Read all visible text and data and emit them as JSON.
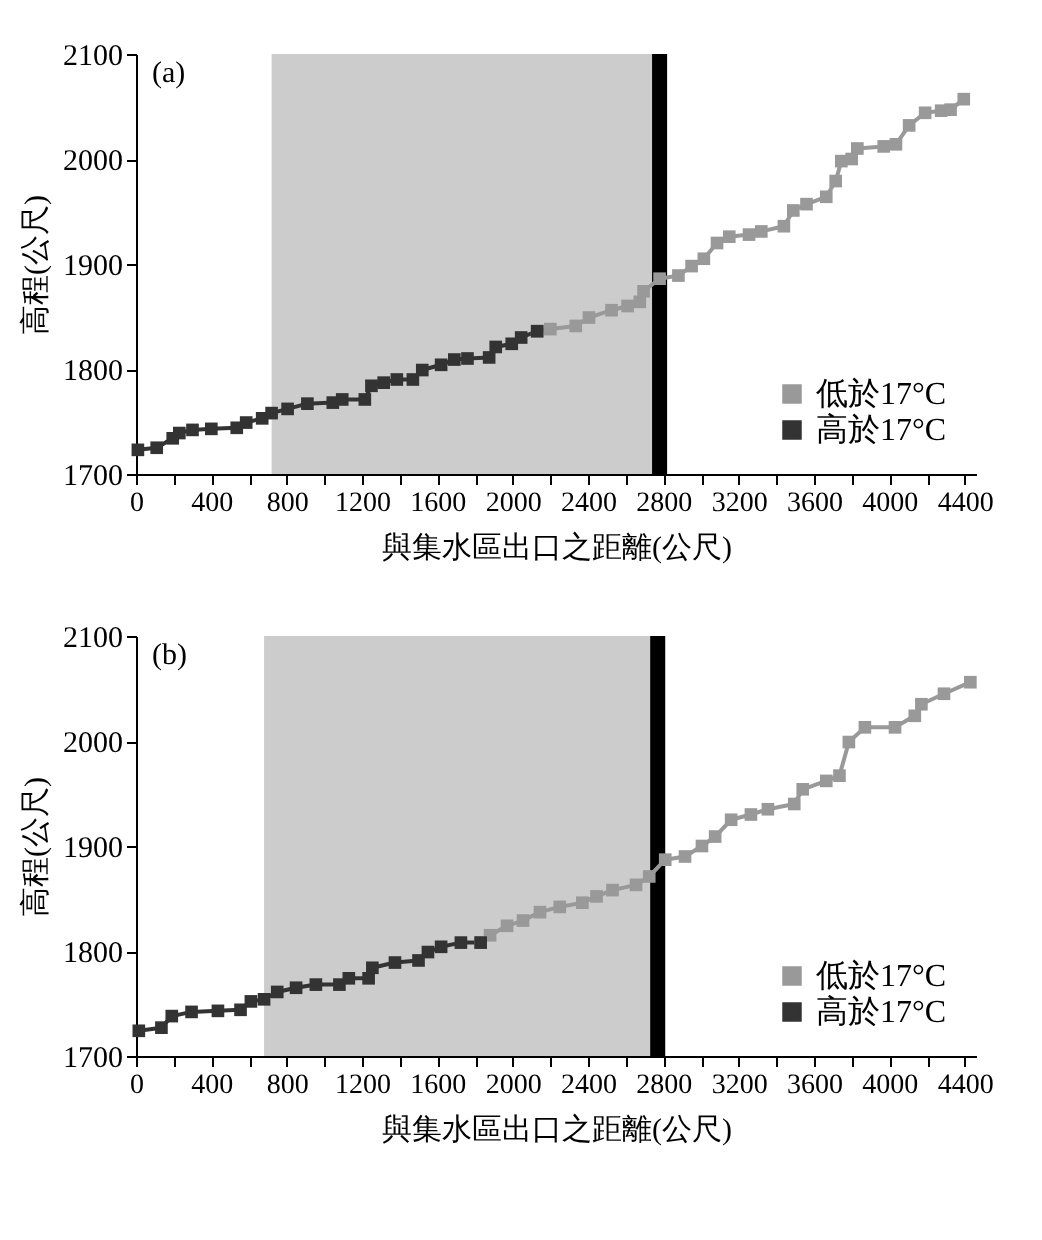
{
  "chart_data": [
    {
      "type": "line",
      "annotations": [
        "(a)"
      ],
      "xlabel": "與集水區出口之距離(公尺)",
      "ylabel": "高程(公尺)",
      "xlim": [
        0,
        4460
      ],
      "ylim": [
        1700,
        2100
      ],
      "xticks": [
        0,
        {
          "value": 200,
          "label": null
        },
        400,
        {
          "value": 600,
          "label": null
        },
        800,
        {
          "value": 1000,
          "label": null
        },
        1200,
        {
          "value": 1400,
          "label": null
        },
        1600,
        {
          "value": 1800,
          "label": null
        },
        2000,
        {
          "value": 2200,
          "label": null
        },
        2400,
        {
          "value": 2600,
          "label": null
        },
        2800,
        {
          "value": 3000,
          "label": null
        },
        3200,
        {
          "value": 3400,
          "label": null
        },
        3600,
        {
          "value": 3800,
          "label": null
        },
        4000,
        {
          "value": 4200,
          "label": null
        },
        4400
      ],
      "yticks": [
        1700,
        1800,
        1900,
        2000,
        2100
      ],
      "legend": "bottom right",
      "marker": "square",
      "line_style": "solid",
      "bands": [
        {
          "axis": "x",
          "from": 720,
          "to": 2740,
          "color": "#cccccc"
        },
        {
          "axis": "x",
          "from": 2740,
          "to": 2820,
          "color": "#000000"
        }
      ],
      "series": [
        {
          "name": "低於17°C",
          "color": "#999999",
          "x": [
            2130,
            2200,
            2335,
            2405,
            2525,
            2610,
            2675,
            2695,
            2780,
            2880,
            2950,
            3015,
            3085,
            3150,
            3255,
            3320,
            3440,
            3490,
            3560,
            3665,
            3715,
            3745,
            3800,
            3830,
            3970,
            4035,
            4105,
            4190,
            4275,
            4325,
            4395
          ],
          "values": [
            1836,
            1838,
            1841,
            1849,
            1856,
            1860,
            1864,
            1874,
            1886,
            1889,
            1898,
            1905,
            1920,
            1926,
            1928,
            1931,
            1936,
            1951,
            1957,
            1964,
            1979,
            1998,
            2000,
            2010,
            2012,
            2014,
            2032,
            2044,
            2046,
            2047,
            2057
          ]
        },
        {
          "name": "高於17°C",
          "color": "#333333",
          "x": [
            10,
            110,
            195,
            230,
            300,
            400,
            535,
            585,
            670,
            720,
            805,
            910,
            1045,
            1095,
            1215,
            1250,
            1315,
            1385,
            1470,
            1520,
            1620,
            1690,
            1760,
            1875,
            1910,
            1995,
            2045,
            2130
          ],
          "values": [
            1723,
            1725,
            1734,
            1739,
            1742,
            1743,
            1744,
            1749,
            1753,
            1758,
            1762,
            1767,
            1768,
            1771,
            1771,
            1784,
            1787,
            1790,
            1790,
            1799,
            1804,
            1809,
            1810,
            1811,
            1821,
            1824,
            1830,
            1836
          ]
        }
      ]
    },
    {
      "type": "line",
      "annotations": [
        "(b)"
      ],
      "xlabel": "與集水區出口之距離(公尺)",
      "ylabel": "高程(公尺)",
      "xlim": [
        0,
        4460
      ],
      "ylim": [
        1700,
        2100
      ],
      "xticks": [
        0,
        {
          "value": 200,
          "label": null
        },
        400,
        {
          "value": 600,
          "label": null
        },
        800,
        {
          "value": 1000,
          "label": null
        },
        1200,
        {
          "value": 1400,
          "label": null
        },
        1600,
        {
          "value": 1800,
          "label": null
        },
        2000,
        {
          "value": 2200,
          "label": null
        },
        2400,
        {
          "value": 2600,
          "label": null
        },
        2800,
        {
          "value": 3000,
          "label": null
        },
        3200,
        {
          "value": 3400,
          "label": null
        },
        3600,
        {
          "value": 3800,
          "label": null
        },
        4000,
        {
          "value": 4200,
          "label": null
        },
        4400
      ],
      "yticks": [
        1700,
        1800,
        1900,
        2000,
        2100
      ],
      "legend": "bottom right",
      "marker": "square",
      "line_style": "solid",
      "bands": [
        {
          "axis": "x",
          "from": 680,
          "to": 2730,
          "color": "#cccccc"
        },
        {
          "axis": "x",
          "from": 2730,
          "to": 2810,
          "color": "#000000"
        }
      ],
      "series": [
        {
          "name": "低於17°C",
          "color": "#999999",
          "x": [
            1830,
            1880,
            1970,
            2055,
            2145,
            2250,
            2370,
            2445,
            2530,
            2655,
            2725,
            2810,
            2915,
            3005,
            3075,
            3160,
            3265,
            3355,
            3495,
            3540,
            3665,
            3735,
            3785,
            3870,
            4030,
            4135,
            4170,
            4290,
            4430
          ],
          "values": [
            1808,
            1815,
            1824,
            1829,
            1837,
            1842,
            1846,
            1852,
            1858,
            1863,
            1871,
            1887,
            1890,
            1900,
            1909,
            1925,
            1930,
            1935,
            1940,
            1954,
            1962,
            1967,
            1999,
            2013,
            2013,
            2024,
            2035,
            2045,
            2056
          ]
        },
        {
          "name": "高於17°C",
          "color": "#333333",
          "x": [
            15,
            135,
            190,
            295,
            435,
            555,
            610,
            680,
            750,
            850,
            955,
            1080,
            1130,
            1235,
            1255,
            1375,
            1500,
            1550,
            1620,
            1725,
            1830
          ],
          "values": [
            1724,
            1727,
            1738,
            1742,
            1743,
            1744,
            1752,
            1754,
            1761,
            1765,
            1768,
            1768,
            1774,
            1774,
            1784,
            1789,
            1791,
            1799,
            1804,
            1808,
            1808
          ]
        }
      ]
    }
  ]
}
